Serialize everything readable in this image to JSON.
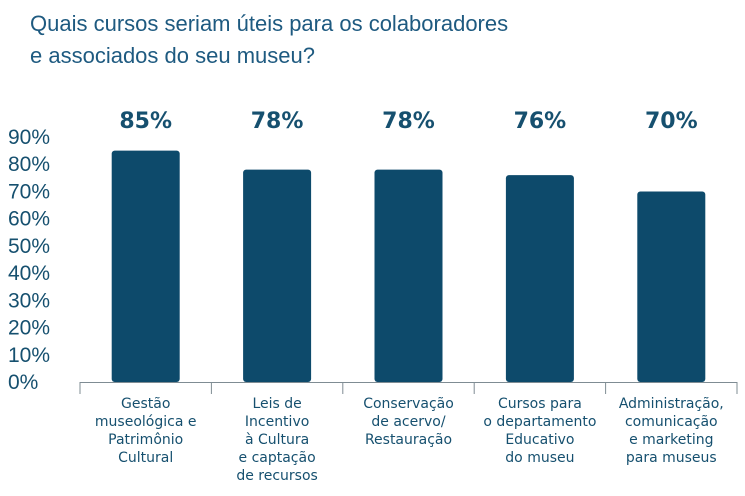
{
  "title_lines": [
    "Quais cursos seriam úteis para os colaboradores",
    "e associados do seu museu?"
  ],
  "colors": {
    "bar": "#0d4a6b",
    "text": "#16506f",
    "title": "#1e5a80",
    "axis": "#7f8c93"
  },
  "chart_data": {
    "type": "bar",
    "title": "Quais cursos seriam úteis para os colaboradores e associados do seu museu?",
    "xlabel": "",
    "ylabel": "",
    "ylim": [
      0,
      90
    ],
    "yticks": [
      "90%",
      "80%",
      "70%",
      "60%",
      "50%",
      "40%",
      "30%",
      "20%",
      "10%",
      "0%"
    ],
    "grid": false,
    "categories": [
      [
        "Gestão",
        "museológica e",
        "Patrimônio",
        "Cultural"
      ],
      [
        "Leis de",
        "Incentivo",
        "à Cultura",
        "e captação",
        "de recursos"
      ],
      [
        "Conservação",
        "de acervo/",
        "Restauração"
      ],
      [
        "Cursos para",
        "o departamento",
        "Educativo",
        "do museu"
      ],
      [
        "Administração,",
        "comunicação",
        "e marketing",
        "para museus"
      ]
    ],
    "values": [
      85,
      78,
      78,
      76,
      70
    ],
    "value_labels": [
      "85%",
      "78%",
      "78%",
      "76%",
      "70%"
    ]
  }
}
